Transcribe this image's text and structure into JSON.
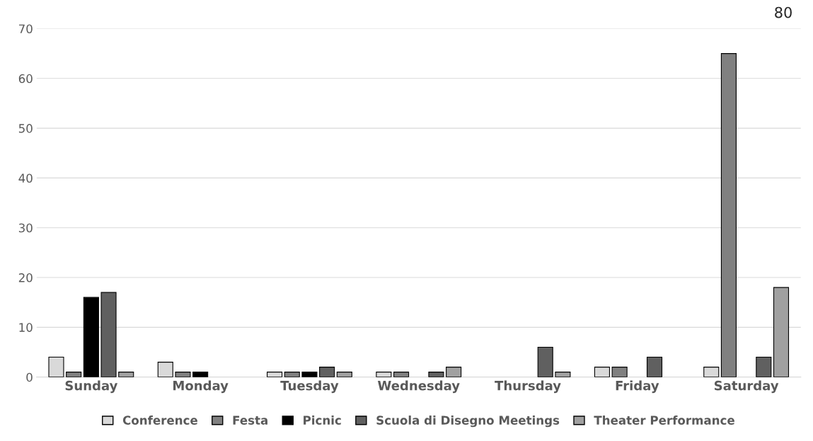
{
  "chart_data": {
    "type": "bar",
    "categories": [
      "Sunday",
      "Monday",
      "Tuesday",
      "Wednesday",
      "Thursday",
      "Friday",
      "Saturday"
    ],
    "series": [
      {
        "name": "Conference",
        "color": "#d9d9d9",
        "values": [
          4,
          3,
          1,
          1,
          null,
          2,
          2
        ]
      },
      {
        "name": "Festa",
        "color": "#808080",
        "values": [
          1,
          1,
          1,
          1,
          null,
          2,
          65
        ]
      },
      {
        "name": "Picnic",
        "color": "#000000",
        "values": [
          16,
          1,
          1,
          null,
          null,
          null,
          null
        ]
      },
      {
        "name": "Scuola di Disegno Meetings",
        "color": "#606060",
        "values": [
          17,
          null,
          2,
          1,
          6,
          4,
          4
        ]
      },
      {
        "name": "Theater Performance",
        "color": "#a0a0a0",
        "values": [
          1,
          null,
          1,
          2,
          1,
          null,
          18
        ]
      }
    ],
    "ylim": [
      0,
      70
    ],
    "yticks": [
      0,
      10,
      20,
      30,
      40,
      50,
      60,
      70
    ],
    "grid": "y",
    "legend": "bottom",
    "annotations": [
      "80"
    ]
  }
}
